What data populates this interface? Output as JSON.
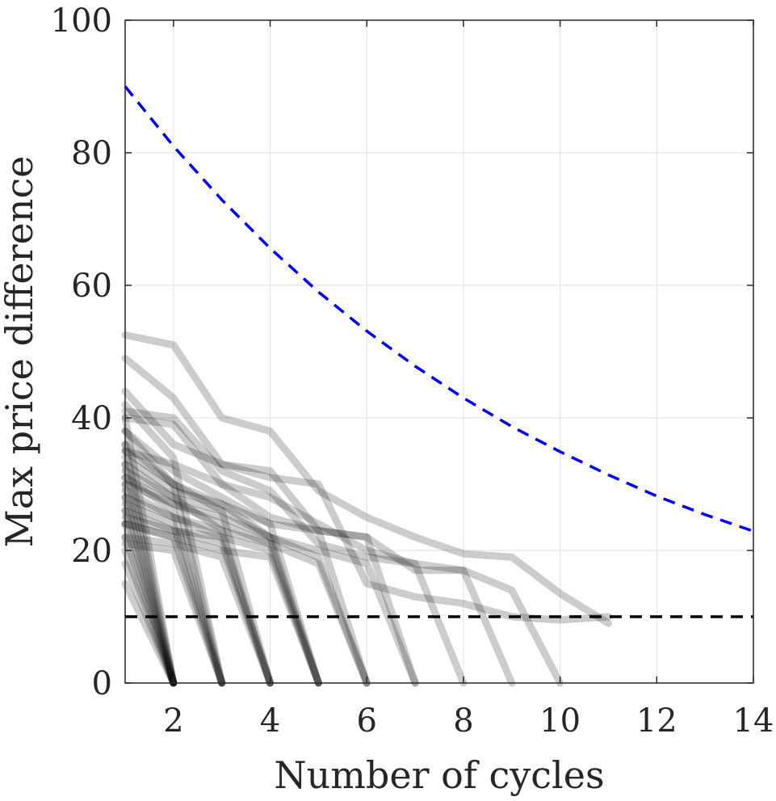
{
  "chart_data": {
    "type": "line",
    "xlabel": "Number of cycles",
    "ylabel": "Max price difference",
    "xlim": [
      1,
      14
    ],
    "ylim": [
      0,
      100
    ],
    "xticks": [
      "2",
      "4",
      "6",
      "8",
      "10",
      "12",
      "14"
    ],
    "yticks": [
      "0",
      "20",
      "40",
      "60",
      "80",
      "100"
    ],
    "grid": true,
    "colors": {
      "trajectory": "#000000",
      "bound": "#0000ee",
      "threshold": "#000000"
    },
    "bound_curve": {
      "x": [
        1,
        2,
        3,
        4,
        5,
        6,
        7,
        8,
        9,
        10,
        11,
        12,
        13,
        14
      ],
      "y": [
        90,
        81,
        72.9,
        65.6,
        59,
        53.1,
        47.8,
        43,
        38.7,
        34.9,
        31.4,
        28.2,
        25.4,
        22.9
      ]
    },
    "threshold_line": {
      "y": 10,
      "x": [
        1,
        14
      ]
    },
    "trajectories": [
      {
        "x": [
          1,
          2,
          3,
          4,
          5,
          6,
          7,
          8,
          9,
          10,
          11
        ],
        "y": [
          52.5,
          51,
          40,
          38,
          29,
          25,
          22,
          19.5,
          19,
          13.5,
          9
        ]
      },
      {
        "x": [
          1,
          2,
          3,
          4,
          5,
          6,
          7,
          8,
          9,
          10
        ],
        "y": [
          49,
          43,
          33,
          32,
          23,
          22,
          17,
          17,
          14,
          0
        ]
      },
      {
        "x": [
          1,
          2,
          3,
          4,
          5,
          6,
          7,
          8,
          9,
          10,
          11
        ],
        "y": [
          44,
          36,
          33,
          31,
          30,
          15,
          13,
          12,
          10,
          9.5,
          10
        ]
      },
      {
        "x": [
          1,
          2,
          3,
          4,
          5,
          6,
          7,
          8,
          9
        ],
        "y": [
          41,
          40,
          32,
          29,
          21,
          19,
          18,
          17,
          0
        ]
      },
      {
        "x": [
          1,
          2,
          3,
          4,
          5,
          6,
          7,
          8
        ],
        "y": [
          40,
          39,
          30,
          28,
          24,
          20,
          18,
          0
        ]
      },
      {
        "x": [
          1,
          2,
          3,
          4,
          5,
          6,
          7
        ],
        "y": [
          38,
          32,
          28,
          24,
          23,
          22,
          0
        ]
      },
      {
        "x": [
          1,
          2,
          3,
          4,
          5,
          6,
          7
        ],
        "y": [
          36,
          30,
          27,
          22,
          20,
          18,
          0
        ]
      },
      {
        "x": [
          1,
          2,
          3,
          4,
          5,
          6
        ],
        "y": [
          35,
          33,
          30,
          25,
          23,
          0
        ]
      },
      {
        "x": [
          1,
          2,
          3,
          4,
          5,
          6
        ],
        "y": [
          33,
          28,
          26,
          22,
          19,
          0
        ]
      },
      {
        "x": [
          1,
          2,
          3,
          4,
          5,
          6
        ],
        "y": [
          30,
          27,
          24,
          21,
          18,
          0
        ]
      },
      {
        "x": [
          1,
          2,
          3,
          4,
          5
        ],
        "y": [
          34,
          29,
          27,
          24,
          0
        ]
      },
      {
        "x": [
          1,
          2,
          3,
          4,
          5
        ],
        "y": [
          31,
          27,
          25,
          22,
          0
        ]
      },
      {
        "x": [
          1,
          2,
          3,
          4,
          5
        ],
        "y": [
          28,
          25,
          23,
          21,
          0
        ]
      },
      {
        "x": [
          1,
          2,
          3,
          4,
          5
        ],
        "y": [
          26,
          23,
          22,
          20,
          0
        ]
      },
      {
        "x": [
          1,
          2,
          3,
          4,
          5
        ],
        "y": [
          24,
          22,
          20,
          19,
          0
        ]
      },
      {
        "x": [
          1,
          2,
          3,
          4
        ],
        "y": [
          38,
          30,
          26,
          0
        ]
      },
      {
        "x": [
          1,
          2,
          3,
          4
        ],
        "y": [
          32,
          28,
          23,
          0
        ]
      },
      {
        "x": [
          1,
          2,
          3,
          4
        ],
        "y": [
          29,
          25,
          22,
          0
        ]
      },
      {
        "x": [
          1,
          2,
          3,
          4
        ],
        "y": [
          25,
          23,
          21,
          0
        ]
      },
      {
        "x": [
          1,
          2,
          3,
          4
        ],
        "y": [
          22,
          21,
          19,
          0
        ]
      },
      {
        "x": [
          1,
          2,
          3
        ],
        "y": [
          42,
          34,
          0
        ]
      },
      {
        "x": [
          1,
          2,
          3
        ],
        "y": [
          35,
          30,
          0
        ]
      },
      {
        "x": [
          1,
          2,
          3
        ],
        "y": [
          31,
          26,
          0
        ]
      },
      {
        "x": [
          1,
          2,
          3
        ],
        "y": [
          27,
          24,
          0
        ]
      },
      {
        "x": [
          1,
          2,
          3
        ],
        "y": [
          24,
          22,
          0
        ]
      },
      {
        "x": [
          1,
          2,
          3
        ],
        "y": [
          21,
          20,
          0
        ]
      },
      {
        "x": [
          1,
          2
        ],
        "y": [
          40,
          0
        ]
      },
      {
        "x": [
          1,
          2
        ],
        "y": [
          36,
          0
        ]
      },
      {
        "x": [
          1,
          2
        ],
        "y": [
          33,
          0
        ]
      },
      {
        "x": [
          1,
          2
        ],
        "y": [
          30,
          0
        ]
      },
      {
        "x": [
          1,
          2
        ],
        "y": [
          28,
          0
        ]
      },
      {
        "x": [
          1,
          2
        ],
        "y": [
          26,
          0
        ]
      },
      {
        "x": [
          1,
          2
        ],
        "y": [
          24,
          0
        ]
      },
      {
        "x": [
          1,
          2
        ],
        "y": [
          22,
          0
        ]
      },
      {
        "x": [
          1,
          2
        ],
        "y": [
          20,
          0
        ]
      },
      {
        "x": [
          1,
          2
        ],
        "y": [
          18,
          0
        ]
      },
      {
        "x": [
          1,
          2
        ],
        "y": [
          15,
          0
        ]
      }
    ]
  }
}
